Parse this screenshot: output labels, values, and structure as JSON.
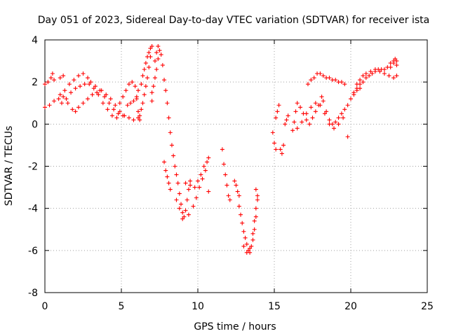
{
  "chart_data": {
    "type": "scatter",
    "title": "Day 051 of 2023, Sidereal Day-to-day VTEC variation (SDTVAR) for receiver ista",
    "xlabel": "GPS time / hours",
    "ylabel": "SDTVAR / TECUs",
    "xlim": [
      0,
      25
    ],
    "ylim": [
      -8,
      4
    ],
    "xticks": [
      "0",
      "5",
      "10",
      "15",
      "20",
      "25"
    ],
    "yticks": [
      "4",
      "2",
      "0",
      "-2",
      "-4",
      "-6",
      "-8"
    ],
    "grid": true,
    "marker": "plus",
    "color": "#ff0000",
    "series": [
      {
        "points": [
          [
            0.0,
            1.9
          ],
          [
            0.2,
            2.0
          ],
          [
            0.4,
            2.2
          ],
          [
            0.5,
            2.4
          ],
          [
            0.6,
            2.1
          ],
          [
            1.0,
            2.2
          ],
          [
            1.2,
            2.3
          ],
          [
            0.0,
            0.8
          ],
          [
            0.3,
            0.9
          ],
          [
            0.6,
            1.1
          ],
          [
            0.9,
            1.2
          ],
          [
            1.2,
            1.3
          ],
          [
            1.5,
            1.0
          ],
          [
            1.8,
            0.7
          ],
          [
            2.0,
            0.6
          ],
          [
            2.2,
            0.8
          ],
          [
            2.5,
            1.0
          ],
          [
            2.8,
            1.2
          ],
          [
            3.1,
            1.4
          ],
          [
            3.4,
            1.5
          ],
          [
            3.7,
            1.6
          ],
          [
            4.0,
            1.4
          ],
          [
            4.3,
            1.2
          ],
          [
            4.6,
            0.9
          ],
          [
            4.9,
            0.6
          ],
          [
            5.2,
            0.4
          ],
          [
            5.5,
            0.3
          ],
          [
            5.8,
            0.2
          ],
          [
            1.0,
            1.4
          ],
          [
            1.3,
            1.6
          ],
          [
            1.6,
            1.9
          ],
          [
            1.9,
            2.1
          ],
          [
            2.2,
            2.3
          ],
          [
            2.5,
            2.4
          ],
          [
            2.8,
            2.2
          ],
          [
            3.0,
            2.0
          ],
          [
            3.3,
            1.8
          ],
          [
            3.6,
            1.6
          ],
          [
            3.9,
            1.3
          ],
          [
            4.2,
            1.0
          ],
          [
            4.5,
            0.7
          ],
          [
            4.8,
            0.5
          ],
          [
            5.1,
            0.4
          ],
          [
            1.1,
            1.0
          ],
          [
            1.4,
            1.2
          ],
          [
            1.7,
            1.5
          ],
          [
            2.0,
            1.7
          ],
          [
            2.3,
            1.8
          ],
          [
            2.6,
            1.9
          ],
          [
            2.9,
            1.9
          ],
          [
            3.2,
            1.7
          ],
          [
            3.5,
            1.4
          ],
          [
            3.8,
            1.0
          ],
          [
            4.1,
            0.7
          ],
          [
            4.4,
            0.4
          ],
          [
            4.7,
            0.3
          ],
          [
            4.9,
            1.0
          ],
          [
            5.1,
            1.3
          ],
          [
            5.3,
            1.6
          ],
          [
            5.5,
            1.9
          ],
          [
            5.7,
            2.0
          ],
          [
            5.9,
            1.8
          ],
          [
            6.0,
            1.2
          ],
          [
            6.1,
            0.6
          ],
          [
            6.2,
            0.2
          ],
          [
            5.4,
            0.9
          ],
          [
            5.6,
            1.0
          ],
          [
            5.8,
            1.1
          ],
          [
            6.0,
            1.3
          ],
          [
            6.1,
            1.6
          ],
          [
            6.3,
            1.9
          ],
          [
            6.4,
            2.3
          ],
          [
            6.5,
            2.6
          ],
          [
            6.6,
            2.9
          ],
          [
            6.7,
            3.2
          ],
          [
            6.8,
            3.4
          ],
          [
            6.9,
            3.6
          ],
          [
            7.0,
            3.7
          ],
          [
            6.9,
            3.2
          ],
          [
            6.8,
            2.7
          ],
          [
            6.7,
            2.2
          ],
          [
            6.6,
            1.8
          ],
          [
            6.5,
            1.4
          ],
          [
            6.4,
            1.0
          ],
          [
            6.3,
            0.7
          ],
          [
            6.2,
            0.4
          ],
          [
            6.1,
            0.3
          ],
          [
            7.2,
            3.0
          ],
          [
            7.3,
            3.4
          ],
          [
            7.4,
            3.7
          ],
          [
            7.5,
            3.5
          ],
          [
            7.4,
            3.1
          ],
          [
            7.3,
            2.6
          ],
          [
            7.2,
            2.2
          ],
          [
            7.1,
            1.8
          ],
          [
            7.0,
            1.5
          ],
          [
            7.0,
            1.1
          ],
          [
            7.6,
            3.3
          ],
          [
            7.7,
            2.8
          ],
          [
            7.8,
            2.1
          ],
          [
            7.9,
            1.6
          ],
          [
            8.0,
            1.0
          ],
          [
            8.1,
            0.3
          ],
          [
            8.2,
            -0.4
          ],
          [
            8.3,
            -1.0
          ],
          [
            8.4,
            -1.5
          ],
          [
            8.5,
            -2.0
          ],
          [
            8.6,
            -2.4
          ],
          [
            8.7,
            -2.8
          ],
          [
            8.8,
            -3.3
          ],
          [
            8.9,
            -3.8
          ],
          [
            9.0,
            -4.2
          ],
          [
            9.1,
            -4.4
          ],
          [
            9.2,
            -4.1
          ],
          [
            9.3,
            -3.6
          ],
          [
            9.4,
            -3.1
          ],
          [
            9.5,
            -2.7
          ],
          [
            7.8,
            -1.8
          ],
          [
            7.9,
            -2.2
          ],
          [
            8.0,
            -2.5
          ],
          [
            8.1,
            -2.8
          ],
          [
            8.2,
            -3.1
          ],
          [
            8.6,
            -3.6
          ],
          [
            8.8,
            -4.0
          ],
          [
            9.0,
            -4.5
          ],
          [
            9.4,
            -4.3
          ],
          [
            9.7,
            -3.9
          ],
          [
            9.9,
            -3.5
          ],
          [
            10.1,
            -3.0
          ],
          [
            10.3,
            -2.6
          ],
          [
            10.5,
            -2.2
          ],
          [
            10.6,
            -1.8
          ],
          [
            10.7,
            -1.6
          ],
          [
            9.2,
            -2.8
          ],
          [
            9.5,
            -2.9
          ],
          [
            9.8,
            -3.0
          ],
          [
            10.0,
            -2.7
          ],
          [
            10.2,
            -2.4
          ],
          [
            10.4,
            -2.0
          ],
          [
            10.7,
            -3.2
          ],
          [
            11.6,
            -1.2
          ],
          [
            11.7,
            -1.9
          ],
          [
            11.8,
            -2.4
          ],
          [
            11.9,
            -2.9
          ],
          [
            12.0,
            -3.4
          ],
          [
            12.1,
            -3.6
          ],
          [
            12.4,
            -2.7
          ],
          [
            12.5,
            -2.9
          ],
          [
            12.6,
            -3.2
          ],
          [
            12.7,
            -3.4
          ],
          [
            12.7,
            -3.9
          ],
          [
            12.8,
            -4.3
          ],
          [
            12.9,
            -4.7
          ],
          [
            13.0,
            -5.1
          ],
          [
            13.1,
            -5.4
          ],
          [
            13.2,
            -5.7
          ],
          [
            13.3,
            -6.0
          ],
          [
            13.4,
            -6.1
          ],
          [
            13.5,
            -5.8
          ],
          [
            13.6,
            -5.2
          ],
          [
            13.7,
            -4.6
          ],
          [
            13.8,
            -4.0
          ],
          [
            13.9,
            -3.6
          ],
          [
            13.0,
            -5.8
          ],
          [
            13.2,
            -6.1
          ],
          [
            13.4,
            -5.9
          ],
          [
            13.6,
            -5.5
          ],
          [
            13.7,
            -5.0
          ],
          [
            13.8,
            -4.4
          ],
          [
            13.8,
            -3.1
          ],
          [
            13.9,
            -3.4
          ],
          [
            14.9,
            -0.4
          ],
          [
            15.0,
            -0.9
          ],
          [
            15.1,
            -1.2
          ],
          [
            15.1,
            0.3
          ],
          [
            15.2,
            0.6
          ],
          [
            15.3,
            0.9
          ],
          [
            15.4,
            -1.2
          ],
          [
            15.5,
            -1.4
          ],
          [
            15.6,
            -1.0
          ],
          [
            15.7,
            0.0
          ],
          [
            15.8,
            0.2
          ],
          [
            15.9,
            0.4
          ],
          [
            16.2,
            -0.3
          ],
          [
            16.3,
            0.1
          ],
          [
            16.4,
            0.6
          ],
          [
            16.5,
            1.0
          ],
          [
            16.7,
            0.8
          ],
          [
            16.9,
            0.5
          ],
          [
            17.1,
            0.2
          ],
          [
            17.3,
            0.0
          ],
          [
            17.5,
            0.3
          ],
          [
            17.7,
            0.6
          ],
          [
            17.9,
            0.9
          ],
          [
            18.1,
            1.3
          ],
          [
            18.2,
            1.1
          ],
          [
            18.4,
            0.6
          ],
          [
            18.6,
            0.2
          ],
          [
            18.8,
            0.0
          ],
          [
            19.0,
            0.1
          ],
          [
            19.2,
            0.3
          ],
          [
            19.4,
            0.5
          ],
          [
            19.6,
            0.7
          ],
          [
            19.8,
            0.9
          ],
          [
            20.0,
            1.2
          ],
          [
            20.2,
            1.4
          ],
          [
            20.4,
            1.6
          ],
          [
            20.6,
            1.7
          ],
          [
            16.5,
            -0.2
          ],
          [
            16.8,
            0.1
          ],
          [
            17.1,
            0.5
          ],
          [
            17.4,
            0.8
          ],
          [
            17.7,
            1.0
          ],
          [
            18.0,
            0.9
          ],
          [
            18.3,
            0.5
          ],
          [
            18.6,
            0.0
          ],
          [
            18.9,
            -0.2
          ],
          [
            19.2,
            0.0
          ],
          [
            19.5,
            0.3
          ],
          [
            19.8,
            -0.6
          ],
          [
            17.2,
            1.9
          ],
          [
            17.4,
            2.1
          ],
          [
            17.6,
            2.2
          ],
          [
            17.8,
            2.4
          ],
          [
            18.0,
            2.4
          ],
          [
            18.2,
            2.3
          ],
          [
            18.4,
            2.2
          ],
          [
            18.6,
            2.2
          ],
          [
            18.8,
            2.1
          ],
          [
            19.0,
            2.1
          ],
          [
            19.2,
            2.0
          ],
          [
            19.4,
            2.0
          ],
          [
            19.6,
            1.9
          ],
          [
            20.2,
            1.5
          ],
          [
            20.4,
            1.7
          ],
          [
            20.6,
            1.9
          ],
          [
            20.8,
            2.0
          ],
          [
            21.0,
            2.2
          ],
          [
            21.2,
            2.3
          ],
          [
            21.4,
            2.4
          ],
          [
            21.6,
            2.5
          ],
          [
            21.8,
            2.6
          ],
          [
            22.0,
            2.6
          ],
          [
            22.2,
            2.6
          ],
          [
            22.4,
            2.7
          ],
          [
            22.6,
            2.7
          ],
          [
            22.8,
            2.9
          ],
          [
            23.0,
            3.0
          ],
          [
            20.4,
            1.9
          ],
          [
            20.6,
            2.1
          ],
          [
            20.8,
            2.3
          ],
          [
            21.0,
            2.4
          ],
          [
            21.3,
            2.5
          ],
          [
            21.6,
            2.6
          ],
          [
            21.9,
            2.5
          ],
          [
            22.2,
            2.4
          ],
          [
            22.5,
            2.3
          ],
          [
            22.8,
            2.2
          ],
          [
            23.0,
            2.3
          ],
          [
            22.6,
            2.9
          ],
          [
            22.8,
            3.0
          ],
          [
            22.9,
            3.1
          ],
          [
            23.0,
            2.8
          ]
        ]
      }
    ]
  }
}
